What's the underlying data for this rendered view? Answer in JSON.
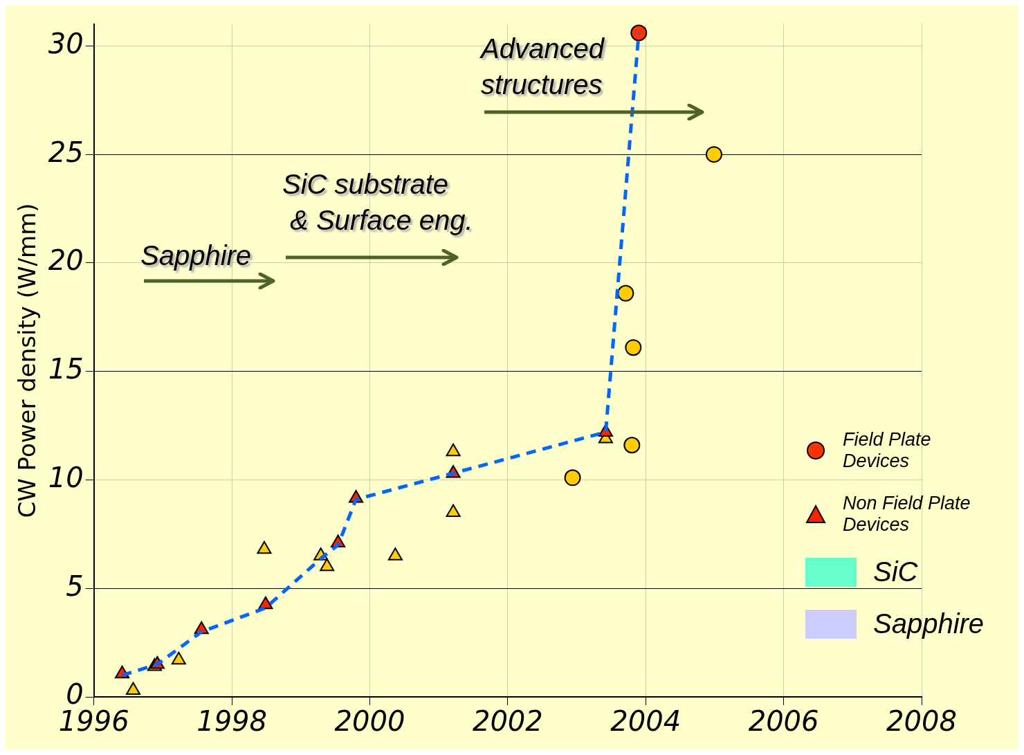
{
  "chart_data": {
    "type": "scatter",
    "ylabel": "CW Power density (W/mm)",
    "xlim": [
      1996,
      2008
    ],
    "xticks": [
      1996,
      1998,
      2000,
      2002,
      2004,
      2006,
      2008
    ],
    "ylim": [
      0,
      31
    ],
    "yticks": [
      0,
      5,
      10,
      15,
      20,
      25,
      30
    ],
    "grid": true,
    "legend": "right",
    "annotations": [
      "Sapphire",
      "SiC substrate\n & Surface eng.",
      "Advanced\nstructures"
    ],
    "series": [
      {
        "name": "Field Plate Devices",
        "type": "scatter",
        "marker": "circle",
        "color": "#ff3300",
        "x": [
          2003.9
        ],
        "values": [
          30.6
        ]
      },
      {
        "name": "Non Field Plate Devices",
        "type": "scatter",
        "marker": "triangle",
        "color": "#ff2200",
        "x": [
          1996.41,
          1996.92,
          1997.56,
          1998.49,
          1999.54,
          1999.8,
          2001.21,
          2003.42
        ],
        "values": [
          1.06,
          1.5,
          3.1,
          4.25,
          7.1,
          9.15,
          10.3,
          12.2
        ]
      },
      {
        "type": "scatter",
        "marker": "triangle",
        "color": "#ffcc00",
        "x": [
          1996.57,
          1996.88,
          1997.23,
          1998.47,
          1999.29,
          1999.38,
          2000.37,
          2001.21,
          2001.21,
          2003.42
        ],
        "values": [
          0.3,
          1.4,
          1.7,
          6.8,
          6.5,
          6.0,
          6.5,
          11.3,
          8.5,
          11.9
        ]
      },
      {
        "type": "scatter",
        "marker": "circle",
        "color": "#ffcc00",
        "x": [
          2002.94,
          2003.71,
          2003.82,
          2003.8,
          2004.99
        ],
        "values": [
          10.1,
          18.6,
          16.1,
          11.6,
          25.0
        ]
      },
      {
        "type": "line",
        "marker": "none",
        "line_style": "dashed",
        "color": "#0066ff",
        "x": [
          1996.41,
          1996.92,
          1997.56,
          1998.49,
          1999.3,
          1999.54,
          1999.8,
          2003.42,
          2003.9
        ],
        "values": [
          1.0,
          1.5,
          3.0,
          4.1,
          6.4,
          7.0,
          9.1,
          12.2,
          30.6
        ]
      },
      {
        "name": "SiC",
        "type": "area",
        "color": "#66ffcc"
      },
      {
        "name": "Sapphire",
        "type": "area",
        "color": "#ccccff"
      }
    ]
  }
}
